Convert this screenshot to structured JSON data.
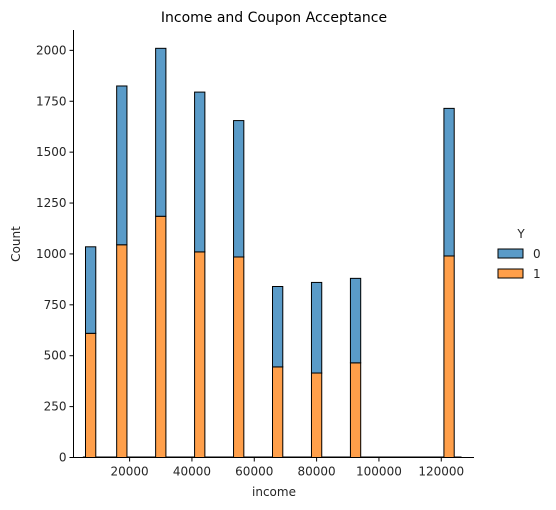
{
  "chart_data": {
    "type": "bar",
    "stacked": true,
    "title": "Income and Coupon Acceptance",
    "xlabel": "income",
    "ylabel": "Count",
    "xlim": [
      2000,
      130500
    ],
    "ylim": [
      0,
      2100
    ],
    "x_ticks": [
      20000,
      40000,
      60000,
      80000,
      100000,
      120000
    ],
    "y_ticks": [
      0,
      250,
      500,
      750,
      1000,
      1250,
      1500,
      1750,
      2000
    ],
    "bin_width": 3300,
    "x": [
      7500,
      17500,
      30000,
      42500,
      55000,
      67500,
      80000,
      92500,
      122500
    ],
    "series": [
      {
        "name": "1",
        "color": "#FF9F4A",
        "values": [
          610,
          1045,
          1185,
          1010,
          985,
          445,
          415,
          465,
          990
        ]
      },
      {
        "name": "0",
        "color": "#5A9BC8",
        "values": [
          425,
          780,
          825,
          785,
          670,
          395,
          445,
          415,
          725
        ]
      }
    ],
    "legend": {
      "title": "Y",
      "placement": "right",
      "entries": [
        "0",
        "1"
      ]
    },
    "grid": false
  }
}
